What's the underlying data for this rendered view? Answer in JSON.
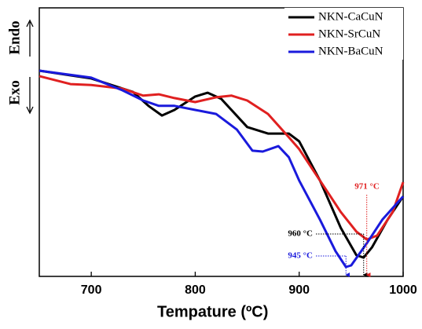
{
  "chart_data": {
    "type": "line",
    "x_label": "Tempature (ºC)",
    "y_labels": [
      "Endo",
      "Exo"
    ],
    "xlim": [
      650,
      1000
    ],
    "ylim": [
      0,
      100
    ],
    "xticks": [
      700,
      800,
      900,
      1000
    ],
    "legend": "top-right",
    "series": [
      {
        "name": "NKN-CaCuN",
        "color": "#000000",
        "x": [
          650,
          700,
          740,
          755,
          768,
          780,
          800,
          812,
          825,
          850,
          870,
          890,
          900,
          920,
          940,
          955,
          962,
          970,
          985,
          1000
        ],
        "values": [
          76.6,
          73.7,
          68.7,
          63.5,
          59.9,
          62.0,
          67.0,
          68.4,
          66.1,
          55.6,
          53.2,
          53.2,
          50.3,
          35.7,
          18.1,
          7.9,
          7.0,
          10.8,
          21.1,
          29.8
        ]
      },
      {
        "name": "NKN-SrCuN",
        "color": "#e02020",
        "x": [
          650,
          680,
          700,
          730,
          750,
          765,
          780,
          800,
          820,
          835,
          850,
          870,
          890,
          900,
          920,
          940,
          955,
          965,
          975,
          990,
          1000
        ],
        "values": [
          74.6,
          71.6,
          71.3,
          69.9,
          67.3,
          67.8,
          66.4,
          64.9,
          66.7,
          67.3,
          65.5,
          60.5,
          51.8,
          47.4,
          35.7,
          24.0,
          16.7,
          13.7,
          15.2,
          24.0,
          35.1
        ]
      },
      {
        "name": "NKN-BaCuN",
        "color": "#1a1adc",
        "x": [
          650,
          700,
          730,
          750,
          765,
          780,
          800,
          820,
          840,
          855,
          865,
          880,
          890,
          900,
          920,
          935,
          945,
          950,
          965,
          980,
          1000
        ],
        "values": [
          76.6,
          74.0,
          69.3,
          65.5,
          63.5,
          63.5,
          62.0,
          60.5,
          54.7,
          46.8,
          46.5,
          48.5,
          44.4,
          35.7,
          21.1,
          9.4,
          3.5,
          4.1,
          12.3,
          21.1,
          29.8
        ]
      }
    ],
    "annotations": [
      {
        "text": "960 °C",
        "color": "#000000"
      },
      {
        "text": "971 °C",
        "color": "#e02020"
      },
      {
        "text": "945 °C",
        "color": "#1a1adc"
      }
    ]
  }
}
